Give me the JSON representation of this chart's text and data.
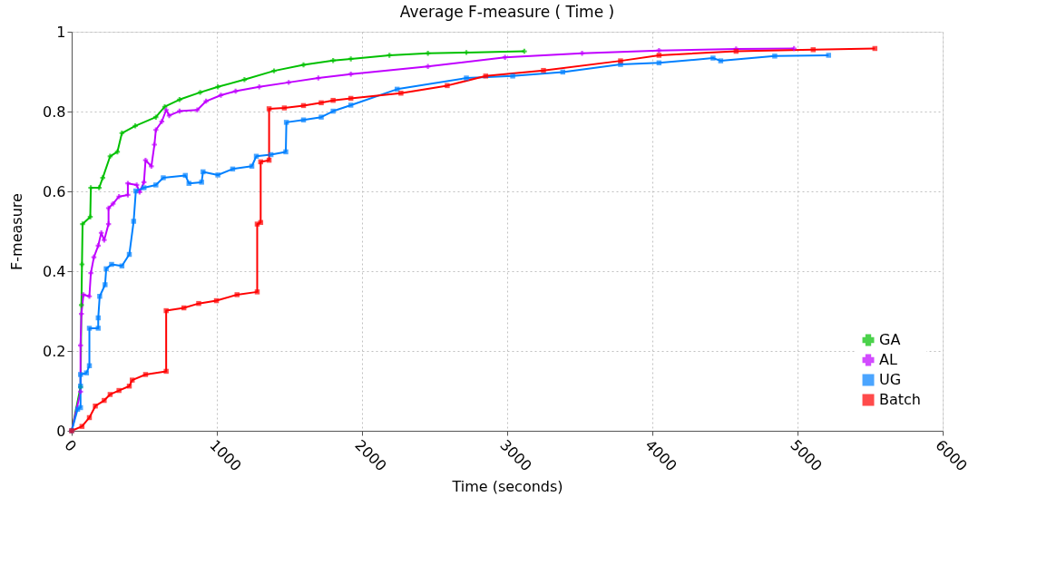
{
  "chart_data": {
    "type": "line",
    "title": "Average F-measure ( Time )",
    "xlabel": "Time (seconds)",
    "ylabel": "F-measure",
    "xlim": [
      0,
      6000
    ],
    "xticks": [
      0,
      1000,
      2000,
      3000,
      4000,
      5000,
      6000
    ],
    "ylim": [
      0,
      1
    ],
    "yticks": [
      0,
      0.2,
      0.4,
      0.6,
      0.8,
      1
    ],
    "grid": true,
    "legend": "bottom right",
    "line_style": "solid",
    "series": [
      {
        "name": "GA",
        "color": "#00c000",
        "marker": "cross",
        "x": [
          0,
          61,
          67,
          71,
          75,
          128,
          132,
          189,
          214,
          265,
          315,
          346,
          438,
          580,
          641,
          743,
          885,
          1007,
          1190,
          1394,
          1597,
          1801,
          1923,
          2189,
          2454,
          2719,
          3118
        ],
        "values": [
          0,
          0.11,
          0.315,
          0.417,
          0.518,
          0.536,
          0.609,
          0.609,
          0.634,
          0.688,
          0.699,
          0.746,
          0.764,
          0.786,
          0.812,
          0.83,
          0.848,
          0.862,
          0.88,
          0.902,
          0.917,
          0.928,
          0.932,
          0.941,
          0.946,
          0.948,
          0.951
        ]
      },
      {
        "name": "AL",
        "color": "#c000ff",
        "marker": "cross",
        "x": [
          0,
          61,
          61,
          67,
          81,
          122,
          132,
          153,
          183,
          204,
          224,
          254,
          254,
          285,
          326,
          387,
          387,
          448,
          468,
          498,
          509,
          549,
          570,
          580,
          621,
          651,
          672,
          743,
          865,
          926,
          1028,
          1129,
          1292,
          1495,
          1699,
          1923,
          2454,
          2985,
          3516,
          4046,
          4577,
          4976
        ],
        "values": [
          0,
          0.098,
          0.214,
          0.293,
          0.341,
          0.337,
          0.395,
          0.435,
          0.464,
          0.496,
          0.478,
          0.518,
          0.558,
          0.569,
          0.587,
          0.591,
          0.62,
          0.616,
          0.598,
          0.623,
          0.678,
          0.663,
          0.717,
          0.754,
          0.775,
          0.804,
          0.79,
          0.801,
          0.804,
          0.826,
          0.841,
          0.851,
          0.862,
          0.873,
          0.884,
          0.894,
          0.913,
          0.936,
          0.946,
          0.953,
          0.957,
          0.958
        ]
      },
      {
        "name": "UG",
        "color": "#0080ff",
        "marker": "square",
        "x": [
          0,
          41,
          61,
          61,
          61,
          102,
          122,
          122,
          183,
          183,
          193,
          230,
          238,
          275,
          346,
          397,
          427,
          442,
          498,
          580,
          631,
          783,
          808,
          895,
          905,
          1007,
          1109,
          1241,
          1272,
          1373,
          1475,
          1479,
          1597,
          1719,
          1801,
          1923,
          2242,
          2719,
          3038,
          3383,
          3781,
          4046,
          4418,
          4471,
          4843,
          5214
        ],
        "values": [
          0,
          0.054,
          0.058,
          0.112,
          0.141,
          0.145,
          0.163,
          0.257,
          0.257,
          0.283,
          0.337,
          0.366,
          0.406,
          0.417,
          0.413,
          0.442,
          0.525,
          0.601,
          0.609,
          0.616,
          0.634,
          0.64,
          0.62,
          0.623,
          0.649,
          0.641,
          0.656,
          0.663,
          0.688,
          0.692,
          0.699,
          0.773,
          0.779,
          0.786,
          0.801,
          0.816,
          0.856,
          0.884,
          0.889,
          0.899,
          0.918,
          0.922,
          0.934,
          0.927,
          0.939,
          0.941
        ]
      },
      {
        "name": "Batch",
        "color": "#ff0000",
        "marker": "square",
        "x": [
          0,
          71,
          122,
          163,
          224,
          265,
          326,
          397,
          417,
          509,
          651,
          651,
          773,
          875,
          997,
          1139,
          1278,
          1278,
          1302,
          1302,
          1360,
          1360,
          1465,
          1597,
          1719,
          1801,
          1923,
          2268,
          2587,
          2852,
          3250,
          3781,
          4046,
          4577,
          5108,
          5533
        ],
        "values": [
          0,
          0.011,
          0.033,
          0.062,
          0.076,
          0.091,
          0.101,
          0.112,
          0.127,
          0.141,
          0.149,
          0.301,
          0.308,
          0.319,
          0.326,
          0.341,
          0.348,
          0.518,
          0.522,
          0.674,
          0.678,
          0.807,
          0.809,
          0.815,
          0.822,
          0.828,
          0.833,
          0.846,
          0.865,
          0.889,
          0.903,
          0.927,
          0.941,
          0.951,
          0.955,
          0.958
        ]
      }
    ]
  }
}
